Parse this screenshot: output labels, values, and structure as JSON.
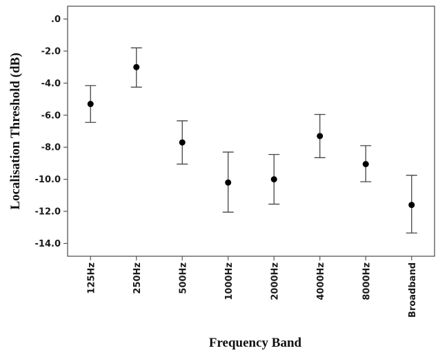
{
  "chart_data": {
    "type": "scatter",
    "subtype": "error-bar",
    "xlabel": "Frequency Band",
    "ylabel": "Localisation Threshold (dB)",
    "categories": [
      "125Hz",
      "250Hz",
      "500Hz",
      "1000Hz",
      "2000Hz",
      "4000Hz",
      "8000Hz",
      "Broadband"
    ],
    "series": [
      {
        "values": [
          -5.3,
          -3.0,
          -7.7,
          -10.2,
          -10.0,
          -7.3,
          -9.05,
          -11.6
        ],
        "error_low": [
          -6.45,
          -4.25,
          -9.05,
          -12.05,
          -11.55,
          -8.65,
          -10.15,
          -13.35
        ],
        "error_high": [
          -4.15,
          -1.8,
          -6.35,
          -8.3,
          -8.45,
          -5.95,
          -7.9,
          -9.75
        ]
      }
    ],
    "ylim": [
      -14.8,
      0.8
    ],
    "yticks": [
      0,
      -2,
      -4,
      -6,
      -8,
      -10,
      -12,
      -14
    ],
    "ytick_labels": [
      ".0",
      "-2.0",
      "-4.0",
      "-6.0",
      "-8.0",
      "-10.0",
      "-12.0",
      "-14.0"
    ],
    "grid": false,
    "legend": false
  }
}
